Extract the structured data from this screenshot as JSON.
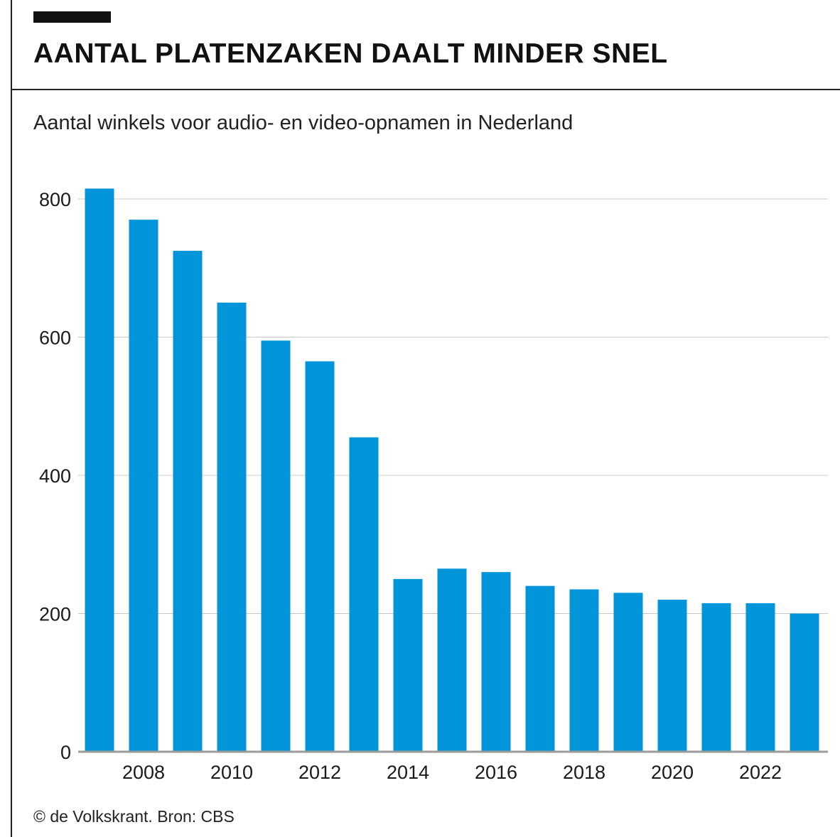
{
  "header": {
    "title": "AANTAL PLATENZAKEN DAALT MINDER SNEL",
    "subtitle": "Aantal winkels voor audio- en video-opnamen in Nederland"
  },
  "footer": {
    "credit": "© de Volkskrant. Bron: CBS"
  },
  "colors": {
    "bar": "#0295da",
    "gridline": "#c8c8c8",
    "axis": "#9a9a9a",
    "text": "#1a1a1a"
  },
  "chart_data": {
    "type": "bar",
    "title": "AANTAL PLATENZAKEN DAALT MINDER SNEL",
    "subtitle": "Aantal winkels voor audio- en video-opnamen in Nederland",
    "xlabel": "",
    "ylabel": "",
    "categories": [
      "2007",
      "2008",
      "2009",
      "2010",
      "2011",
      "2012",
      "2013",
      "2014",
      "2015",
      "2016",
      "2017",
      "2018",
      "2019",
      "2020",
      "2021",
      "2022",
      "2023"
    ],
    "values": [
      815,
      770,
      725,
      650,
      595,
      565,
      455,
      250,
      265,
      260,
      240,
      235,
      230,
      220,
      215,
      215,
      200
    ],
    "ylim": [
      0,
      800
    ],
    "yticks": [
      0,
      200,
      400,
      600,
      800
    ],
    "xtick_labels": [
      "2008",
      "2010",
      "2012",
      "2014",
      "2016",
      "2018",
      "2020",
      "2022"
    ],
    "grid": "horizontal",
    "legend": "none"
  }
}
